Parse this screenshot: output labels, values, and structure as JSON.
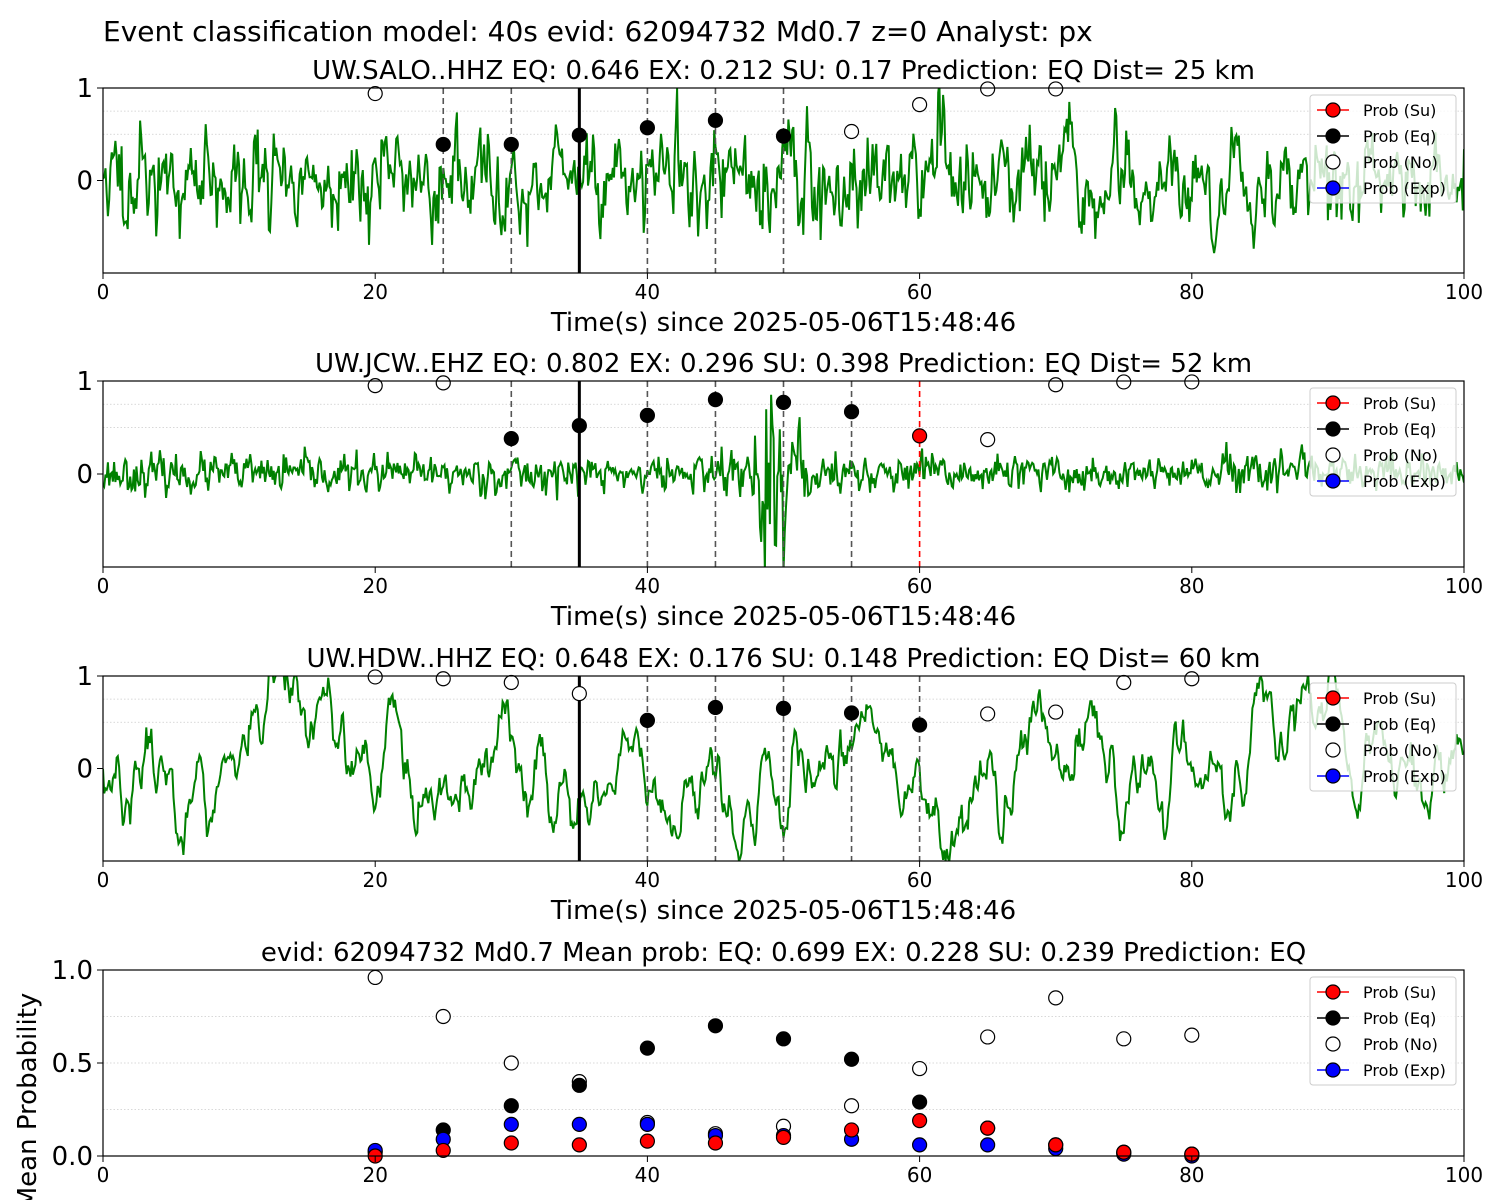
{
  "figure_title": "Event classification model: 40s evid: 62094732 Md0.7 z=0 Analyst: px",
  "legend_labels": [
    "Prob (Su)",
    "Prob (Eq)",
    "Prob (No)",
    "Prob (Exp)"
  ],
  "colors": {
    "waveform": "#008000",
    "su": "#ff0000",
    "eq": "#000000",
    "no": "#ffffff",
    "exp": "#0000ff",
    "origin_line": "#000000",
    "window_line": "#555555",
    "su_window_line": "#ff0000"
  },
  "chart_data": [
    {
      "type": "scatter",
      "title": "UW.SALO..HHZ   EQ: 0.646  EX: 0.212  SU: 0.17   Prediction: EQ    Dist= 25 km",
      "xlabel": "Time(s) since 2025-05-06T15:48:46",
      "ylabel": "",
      "xlim": [
        0,
        100
      ],
      "ylim": [
        -1,
        1
      ],
      "yticks": [
        0,
        1
      ],
      "xticks": [
        0,
        20,
        40,
        60,
        80,
        100
      ],
      "grid": "horizontal-dotted",
      "legend": "top-right",
      "waveform": {
        "seed": 11,
        "amplitude": 0.26,
        "character": "broadband",
        "burst_at": null
      },
      "origin_time": 35,
      "window_lines": [
        25,
        30,
        40,
        45,
        50
      ],
      "su_window_lines": [],
      "series": [
        {
          "name": "Prob (Eq)",
          "x": [
            25,
            30,
            35,
            40,
            45,
            50
          ],
          "y": [
            0.39,
            0.39,
            0.49,
            0.57,
            0.65,
            0.48
          ]
        },
        {
          "name": "Prob (No)",
          "x": [
            20,
            55,
            60,
            65,
            70
          ],
          "y": [
            0.94,
            0.53,
            0.82,
            0.99,
            0.99
          ]
        },
        {
          "name": "Prob (Su)",
          "x": [],
          "y": []
        },
        {
          "name": "Prob (Exp)",
          "x": [],
          "y": []
        }
      ]
    },
    {
      "type": "scatter",
      "title": "UW.JCW..EHZ   EQ: 0.802  EX: 0.296  SU: 0.398   Prediction: EQ    Dist= 52 km",
      "xlabel": "Time(s) since 2025-05-06T15:48:46",
      "ylabel": "",
      "xlim": [
        0,
        100
      ],
      "ylim": [
        -1,
        1
      ],
      "yticks": [
        0,
        1
      ],
      "xticks": [
        0,
        20,
        40,
        60,
        80,
        100
      ],
      "grid": "horizontal-dotted",
      "legend": "top-right",
      "waveform": {
        "seed": 23,
        "amplitude": 0.1,
        "character": "noise",
        "burst_at": [
          44,
          52
        ]
      },
      "origin_time": 35,
      "window_lines": [
        30,
        40,
        45,
        50,
        55
      ],
      "su_window_lines": [
        60
      ],
      "series": [
        {
          "name": "Prob (Eq)",
          "x": [
            30,
            35,
            40,
            45,
            50,
            55
          ],
          "y": [
            0.38,
            0.52,
            0.63,
            0.8,
            0.77,
            0.67
          ]
        },
        {
          "name": "Prob (No)",
          "x": [
            20,
            25,
            65,
            70,
            75,
            80
          ],
          "y": [
            0.95,
            0.98,
            0.37,
            0.96,
            0.99,
            0.99
          ]
        },
        {
          "name": "Prob (Su)",
          "x": [
            60
          ],
          "y": [
            0.41
          ]
        },
        {
          "name": "Prob (Exp)",
          "x": [],
          "y": []
        }
      ]
    },
    {
      "type": "scatter",
      "title": "UW.HDW..HHZ   EQ: 0.648  EX: 0.176  SU: 0.148   Prediction: EQ    Dist= 60 km",
      "xlabel": "Time(s) since 2025-05-06T15:48:46",
      "ylabel": "",
      "xlim": [
        0,
        100
      ],
      "ylim": [
        -1,
        1
      ],
      "yticks": [
        0,
        1
      ],
      "xticks": [
        0,
        20,
        40,
        60,
        80,
        100
      ],
      "grid": "horizontal-dotted",
      "legend": "top-right",
      "waveform": {
        "seed": 37,
        "amplitude": 0.3,
        "character": "lowfreq",
        "burst_at": null
      },
      "origin_time": 35,
      "window_lines": [
        40,
        45,
        50,
        55,
        60
      ],
      "su_window_lines": [],
      "series": [
        {
          "name": "Prob (Eq)",
          "x": [
            40,
            45,
            50,
            55,
            60
          ],
          "y": [
            0.52,
            0.66,
            0.65,
            0.6,
            0.47
          ]
        },
        {
          "name": "Prob (No)",
          "x": [
            20,
            25,
            30,
            35,
            65,
            70,
            75,
            80
          ],
          "y": [
            0.99,
            0.97,
            0.93,
            0.81,
            0.59,
            0.61,
            0.93,
            0.97
          ]
        },
        {
          "name": "Prob (Su)",
          "x": [],
          "y": []
        },
        {
          "name": "Prob (Exp)",
          "x": [],
          "y": []
        }
      ]
    },
    {
      "type": "scatter",
      "title": "evid: 62094732  Md0.7   Mean prob:   EQ: 0.699  EX: 0.228  SU: 0.239   Prediction: EQ",
      "xlabel": "",
      "ylabel": "Mean Probability",
      "xlim": [
        0,
        100
      ],
      "ylim": [
        0,
        1
      ],
      "yticks": [
        0.0,
        0.5,
        1.0
      ],
      "ytick_labels": [
        "0.0",
        "0.5",
        "1.0"
      ],
      "xticks": [
        0,
        20,
        40,
        60,
        80,
        100
      ],
      "grid": "horizontal-dotted",
      "legend": "top-right",
      "series": [
        {
          "name": "Prob (No)",
          "x": [
            20,
            25,
            30,
            35,
            40,
            45,
            50,
            55,
            60,
            65,
            70,
            75,
            80
          ],
          "y": [
            0.96,
            0.75,
            0.5,
            0.4,
            0.18,
            0.12,
            0.16,
            0.27,
            0.47,
            0.64,
            0.85,
            0.63,
            0.65
          ]
        },
        {
          "name": "Prob (Eq)",
          "x": [
            20,
            25,
            30,
            35,
            40,
            45,
            50,
            55,
            60,
            65,
            70,
            75,
            80
          ],
          "y": [
            0.02,
            0.14,
            0.27,
            0.38,
            0.58,
            0.7,
            0.63,
            0.52,
            0.29,
            0.15,
            0.06,
            0.02,
            0.01
          ]
        },
        {
          "name": "Prob (Exp)",
          "x": [
            20,
            25,
            30,
            35,
            40,
            45,
            50,
            55,
            60,
            65,
            70,
            75,
            80
          ],
          "y": [
            0.03,
            0.09,
            0.17,
            0.17,
            0.17,
            0.11,
            0.11,
            0.09,
            0.06,
            0.06,
            0.04,
            0.01,
            0.0
          ]
        },
        {
          "name": "Prob (Su)",
          "x": [
            20,
            25,
            30,
            35,
            40,
            45,
            50,
            55,
            60,
            65,
            70,
            75,
            80
          ],
          "y": [
            0.0,
            0.03,
            0.07,
            0.06,
            0.08,
            0.07,
            0.1,
            0.14,
            0.19,
            0.15,
            0.06,
            0.02,
            0.01
          ]
        }
      ]
    }
  ]
}
